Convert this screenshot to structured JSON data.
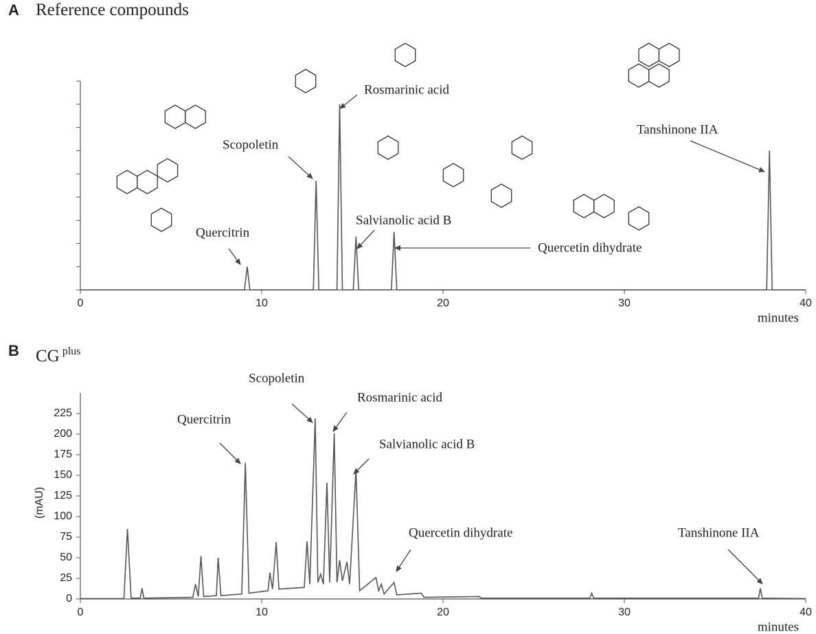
{
  "chart_data": [
    {
      "type": "line",
      "panel": "A",
      "title": "Reference compounds",
      "xlabel": "minutes",
      "xlim": [
        0,
        40
      ],
      "xticks": [
        0,
        10,
        20,
        30,
        40
      ],
      "ylim": [
        0,
        9
      ],
      "yticks": [
        0,
        1,
        2,
        3,
        4,
        5,
        6,
        7,
        8,
        9
      ],
      "ytick_labels": false,
      "color": "#555555",
      "x": [
        0,
        9.05,
        9.2,
        9.35,
        12.85,
        13.0,
        13.15,
        14.15,
        14.3,
        14.45,
        15.05,
        15.2,
        15.35,
        17.15,
        17.3,
        17.45,
        37.85,
        38.0,
        38.15,
        40
      ],
      "values": [
        0,
        0,
        1.0,
        0,
        0,
        4.7,
        0,
        0,
        8.0,
        0,
        0,
        2.3,
        0,
        0,
        2.5,
        0,
        0,
        6.0,
        0,
        0
      ],
      "annotations": [
        "Quercitrin",
        "Scopoletin",
        "Rosmarinic acid",
        "Salvianolic acid B",
        "Quercetin dihydrate",
        "Tanshinone IIA"
      ]
    },
    {
      "type": "line",
      "panel": "B",
      "title": "CG",
      "title_superscript": "plus",
      "xlabel": "minutes",
      "ylabel": "(mAU)",
      "xlim": [
        0,
        40
      ],
      "xticks": [
        0,
        10,
        20,
        30,
        40
      ],
      "ylim": [
        0,
        250
      ],
      "yticks": [
        0,
        25,
        50,
        75,
        100,
        125,
        150,
        175,
        200,
        225
      ],
      "ytick_labels": true,
      "color": "#555555",
      "x": [
        0,
        2.4,
        2.6,
        2.8,
        3.3,
        3.4,
        3.5,
        6.2,
        6.35,
        6.5,
        6.65,
        6.8,
        7.5,
        7.6,
        7.75,
        8.9,
        9.1,
        9.3,
        10.35,
        10.45,
        10.6,
        10.8,
        10.95,
        12.35,
        12.5,
        12.65,
        12.95,
        13.1,
        13.25,
        13.4,
        13.6,
        13.75,
        14.0,
        14.15,
        14.3,
        14.45,
        14.7,
        14.85,
        15.2,
        15.4,
        16.3,
        16.45,
        16.6,
        16.75,
        17.3,
        17.45,
        18.8,
        18.95,
        22.0,
        22.1,
        28.1,
        28.2,
        28.3,
        37.4,
        37.5,
        37.6,
        40
      ],
      "values": [
        0.5,
        0.5,
        85,
        1,
        1,
        13,
        1,
        2,
        18,
        3,
        52,
        3,
        4,
        50,
        4,
        6,
        165,
        7,
        10,
        32,
        12,
        69,
        12,
        14,
        70,
        18,
        219,
        20,
        30,
        18,
        141,
        20,
        201,
        20,
        47,
        22,
        45,
        18,
        157,
        10,
        26,
        10,
        18,
        6,
        20,
        5,
        7,
        2,
        3,
        1,
        1,
        7,
        1,
        1,
        13,
        1,
        0.5
      ],
      "annotations": [
        "Quercitrin",
        "Scopoletin",
        "Rosmarinic acid",
        "Salvianolic acid B",
        "Quercetin dihydrate",
        "Tanshinone IIA"
      ]
    }
  ]
}
